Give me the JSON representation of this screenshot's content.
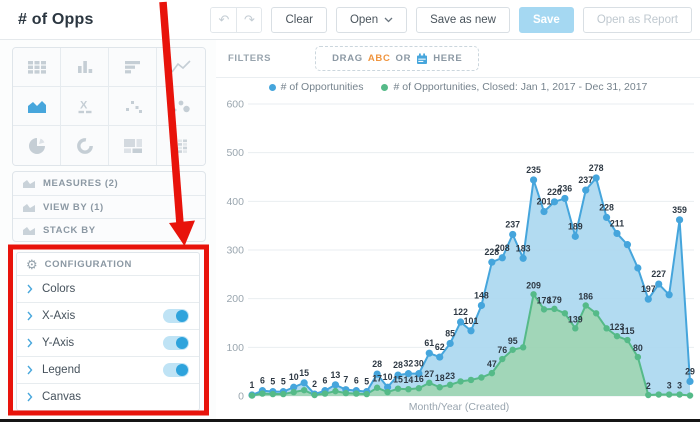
{
  "window": {
    "title": "# of Opps"
  },
  "toolbar": {
    "clear": "Clear",
    "open": "Open",
    "save_as_new": "Save as new",
    "save": "Save",
    "open_as_report": "Open as Report",
    "undo_glyph": "↶",
    "redo_glyph": "↷"
  },
  "sidebar": {
    "chart_types": {
      "items": [
        "table",
        "column-chart",
        "bar-chart",
        "line-chart",
        "area-chart",
        "headline",
        "scatter-plot",
        "bubble-chart",
        "pie-chart",
        "donut-chart",
        "treemap",
        "heatmap"
      ],
      "selected": "area-chart"
    },
    "buckets": [
      {
        "label": "MEASURES (2)"
      },
      {
        "label": "VIEW BY (1)"
      },
      {
        "label": "STACK BY"
      }
    ],
    "configuration": {
      "header": "CONFIGURATION",
      "items": [
        {
          "label": "Colors",
          "toggle": null
        },
        {
          "label": "X-Axis",
          "toggle": true
        },
        {
          "label": "Y-Axis",
          "toggle": true
        },
        {
          "label": "Legend",
          "toggle": true
        },
        {
          "label": "Canvas",
          "toggle": null
        }
      ]
    }
  },
  "filters": {
    "label": "FILTERS",
    "dropzone": {
      "drag": "DRAG",
      "abc": "ABC",
      "or": "OR",
      "here": "HERE"
    }
  },
  "colors": {
    "accent_blue": "#45A5DC",
    "series_green": "#55BA88",
    "save_button_bg": "#A5D8F2",
    "annotation_red": "#E8130B",
    "abc_orange": "#F0953F"
  },
  "annotation": {
    "color": "#E8130B",
    "target": "configuration-panel"
  },
  "chart_data": {
    "type": "area",
    "stacked": true,
    "xlabel": "Month/Year (Created)",
    "ylim": [
      0,
      600
    ],
    "yticks": [
      0,
      100,
      200,
      300,
      400,
      500,
      600
    ],
    "grid": true,
    "legend_position": "top",
    "series": [
      {
        "name": "# of Opportunities",
        "color": "#45A5DC",
        "fill": "#ABD8F0",
        "values": [
          1,
          6,
          5,
          5,
          10,
          15,
          2,
          6,
          13,
          7,
          6,
          5,
          28,
          10,
          28,
          32,
          30,
          61,
          62,
          85,
          122,
          101,
          148,
          228,
          208,
          237,
          183,
          235,
          201,
          220,
          236,
          189,
          237,
          278,
          228,
          211,
          196,
          183,
          197,
          227,
          205,
          359,
          29
        ],
        "labels": [
          1,
          6,
          5,
          5,
          10,
          15,
          2,
          6,
          13,
          7,
          6,
          5,
          28,
          10,
          28,
          32,
          30,
          61,
          62,
          85,
          122,
          101,
          148,
          228,
          208,
          237,
          183,
          235,
          201,
          220,
          236,
          189,
          237,
          278,
          228,
          211,
          null,
          null,
          197,
          227,
          null,
          359,
          29
        ]
      },
      {
        "name": "# of Opportunities, Closed: Jan 1, 2017 - Dec 31, 2017",
        "color": "#55BA88",
        "fill": "#97D2B0",
        "values": [
          1,
          5,
          4,
          4,
          8,
          12,
          2,
          5,
          10,
          6,
          5,
          4,
          17,
          8,
          15,
          14,
          16,
          27,
          18,
          23,
          30,
          33,
          38,
          47,
          76,
          95,
          100,
          209,
          178,
          179,
          170,
          139,
          186,
          170,
          139,
          123,
          115,
          80,
          2,
          3,
          3,
          3,
          1
        ],
        "labels": [
          null,
          null,
          null,
          null,
          null,
          null,
          null,
          null,
          null,
          null,
          null,
          null,
          17,
          null,
          15,
          14,
          16,
          27,
          18,
          23,
          null,
          null,
          null,
          47,
          76,
          95,
          null,
          209,
          178,
          179,
          null,
          139,
          186,
          null,
          null,
          123,
          115,
          80,
          2,
          null,
          3,
          3,
          null
        ]
      }
    ]
  }
}
